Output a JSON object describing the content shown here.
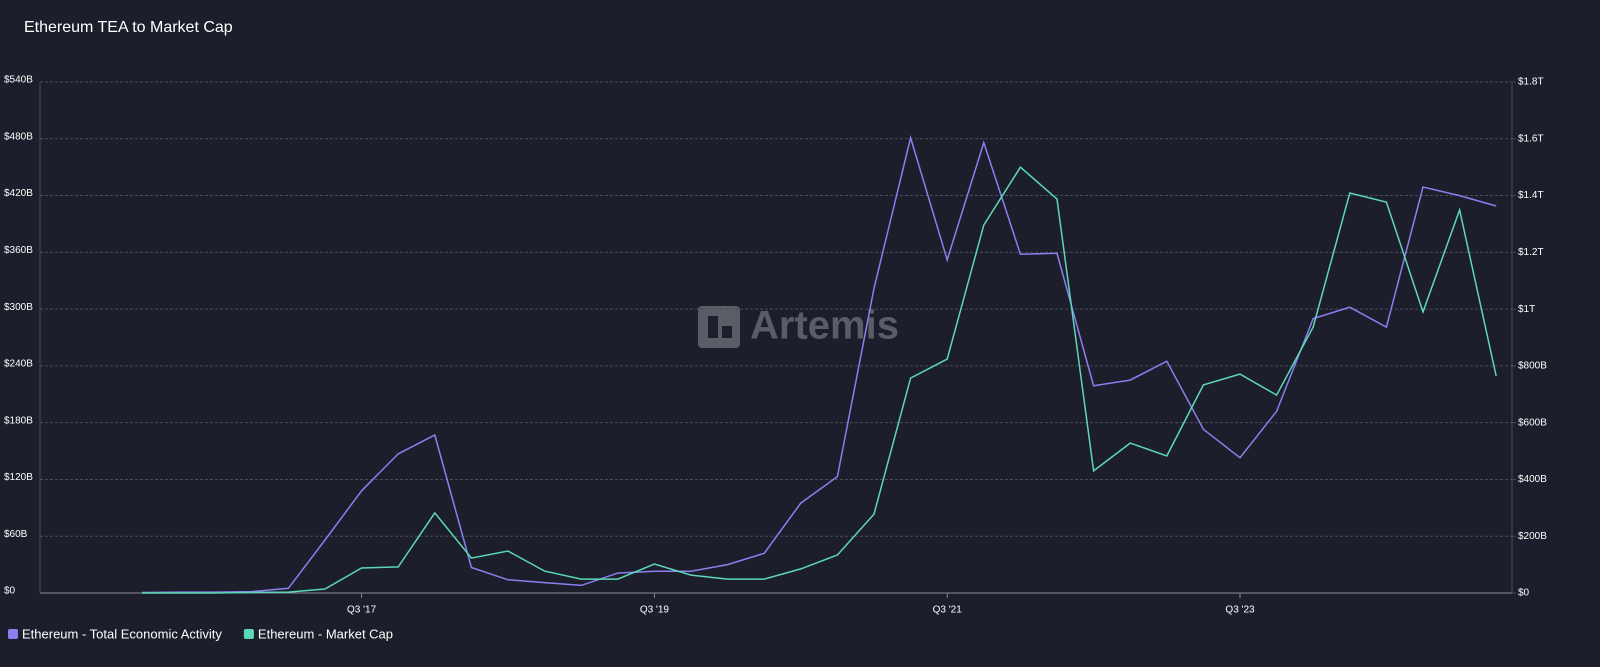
{
  "chart_data": {
    "type": "line",
    "title": "Ethereum TEA to Market Cap",
    "watermark": "Artemis",
    "categories": [
      null,
      null,
      null,
      null,
      null,
      null,
      "Q3 '17",
      null,
      null,
      null,
      null,
      null,
      null,
      null,
      "Q3 '19",
      null,
      null,
      null,
      null,
      null,
      null,
      null,
      "Q3 '21",
      null,
      null,
      null,
      null,
      null,
      null,
      null,
      "Q3 '23",
      null,
      null,
      null,
      null,
      null,
      null,
      null
    ],
    "series": [
      {
        "name": "Ethereum - Total Economic Activity",
        "color": "#8b7ff0",
        "axis": "y",
        "values": [
          0.5,
          1,
          1,
          1.5,
          5,
          56,
          108,
          147,
          167,
          27,
          14,
          11,
          8,
          21,
          23,
          23,
          30,
          42,
          95,
          123,
          322,
          481,
          352,
          476,
          358,
          359,
          219,
          225,
          245,
          173,
          143,
          192,
          290,
          302,
          281,
          429,
          420,
          409
        ]
      },
      {
        "name": "Ethereum - Market Cap",
        "color": "#5cd8b6",
        "axis": "y2",
        "values": [
          0,
          0,
          0,
          2,
          3,
          14,
          88,
          92,
          282,
          123,
          148,
          77,
          49,
          49,
          102,
          63,
          49,
          49,
          85,
          134,
          278,
          757,
          824,
          1296,
          1500,
          1388,
          430,
          528,
          483,
          733,
          771,
          697,
          937,
          1409,
          1377,
          990,
          1349,
          764
        ]
      }
    ],
    "ylim": [
      0,
      540
    ],
    "yticks": [
      {
        "value": 0,
        "label": "$0"
      },
      {
        "value": 60,
        "label": "$60B"
      },
      {
        "value": 120,
        "label": "$120B"
      },
      {
        "value": 180,
        "label": "$180B"
      },
      {
        "value": 240,
        "label": "$240B"
      },
      {
        "value": 300,
        "label": "$300B"
      },
      {
        "value": 360,
        "label": "$360B"
      },
      {
        "value": 420,
        "label": "$420B"
      },
      {
        "value": 480,
        "label": "$480B"
      },
      {
        "value": 540,
        "label": "$540B"
      }
    ],
    "y2lim": [
      0,
      1800
    ],
    "y2ticks": [
      {
        "value": 0,
        "label": "$0"
      },
      {
        "value": 200,
        "label": "$200B"
      },
      {
        "value": 400,
        "label": "$400B"
      },
      {
        "value": 600,
        "label": "$600B"
      },
      {
        "value": 800,
        "label": "$800B"
      },
      {
        "value": 1000,
        "label": "$1T"
      },
      {
        "value": 1200,
        "label": "$1.2T"
      },
      {
        "value": 1400,
        "label": "$1.4T"
      },
      {
        "value": 1600,
        "label": "$1.6T"
      },
      {
        "value": 1800,
        "label": "$1.8T"
      }
    ],
    "grid": true
  }
}
